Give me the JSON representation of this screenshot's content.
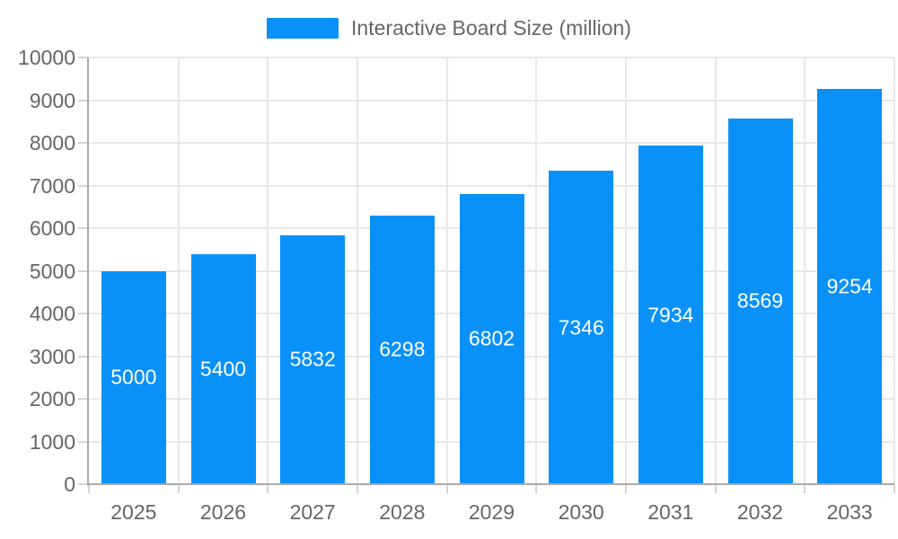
{
  "legend": {
    "label": "Interactive Board Size (million)"
  },
  "chart_data": {
    "type": "bar",
    "title": "",
    "xlabel": "",
    "ylabel": "",
    "categories": [
      "2025",
      "2026",
      "2027",
      "2028",
      "2029",
      "2030",
      "2031",
      "2032",
      "2033"
    ],
    "values": [
      5000,
      5400,
      5832,
      6298,
      6802,
      7346,
      7934,
      8569,
      9254
    ],
    "series_name": "Interactive Board Size (million)",
    "ylim": [
      0,
      10000
    ],
    "yticks": [
      0,
      1000,
      2000,
      3000,
      4000,
      5000,
      6000,
      7000,
      8000,
      9000,
      10000
    ],
    "grid": true,
    "legend_position": "top-center",
    "value_labels": "inside-center",
    "colors": {
      "bar": "#0991f8",
      "grid": "#e8e8e8",
      "axis": "#ababab",
      "tick": "#d4d4d4",
      "text": "#666666",
      "value_label": "#ffffff",
      "background": "#ffffff"
    }
  }
}
